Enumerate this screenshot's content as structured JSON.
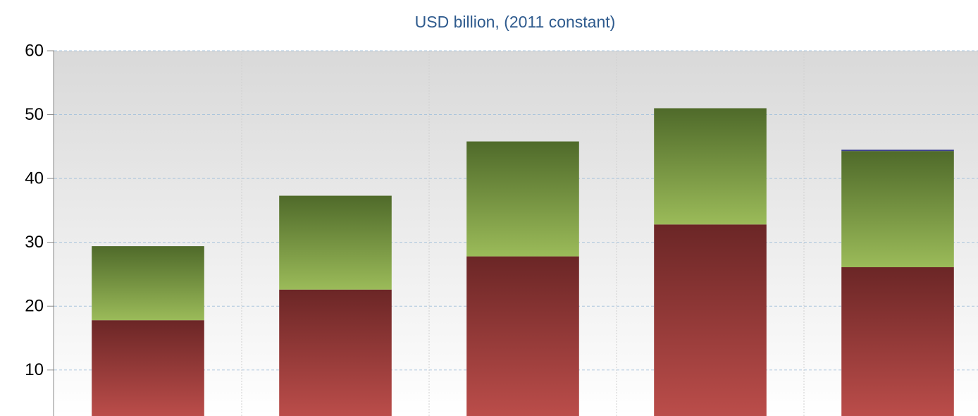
{
  "chart_data": {
    "type": "stacked_bar",
    "title": "USD billion, (2011 constant)",
    "categories": [
      null,
      null,
      null,
      null,
      null
    ],
    "series": [
      {
        "color": "#a13f3c",
        "values": [
          15,
          19.8,
          25,
          30,
          23.3
        ]
      },
      {
        "color": "#7d9c45",
        "values": [
          11.6,
          14.7,
          18,
          18.2,
          18.2
        ]
      },
      {
        "color": "#3b3f8f",
        "values": [
          0,
          0,
          0,
          0,
          0.2
        ]
      }
    ],
    "ylim": [
      2.8,
      60
    ],
    "yticks": [
      10,
      20,
      30,
      40,
      50,
      60
    ],
    "grid": true
  }
}
